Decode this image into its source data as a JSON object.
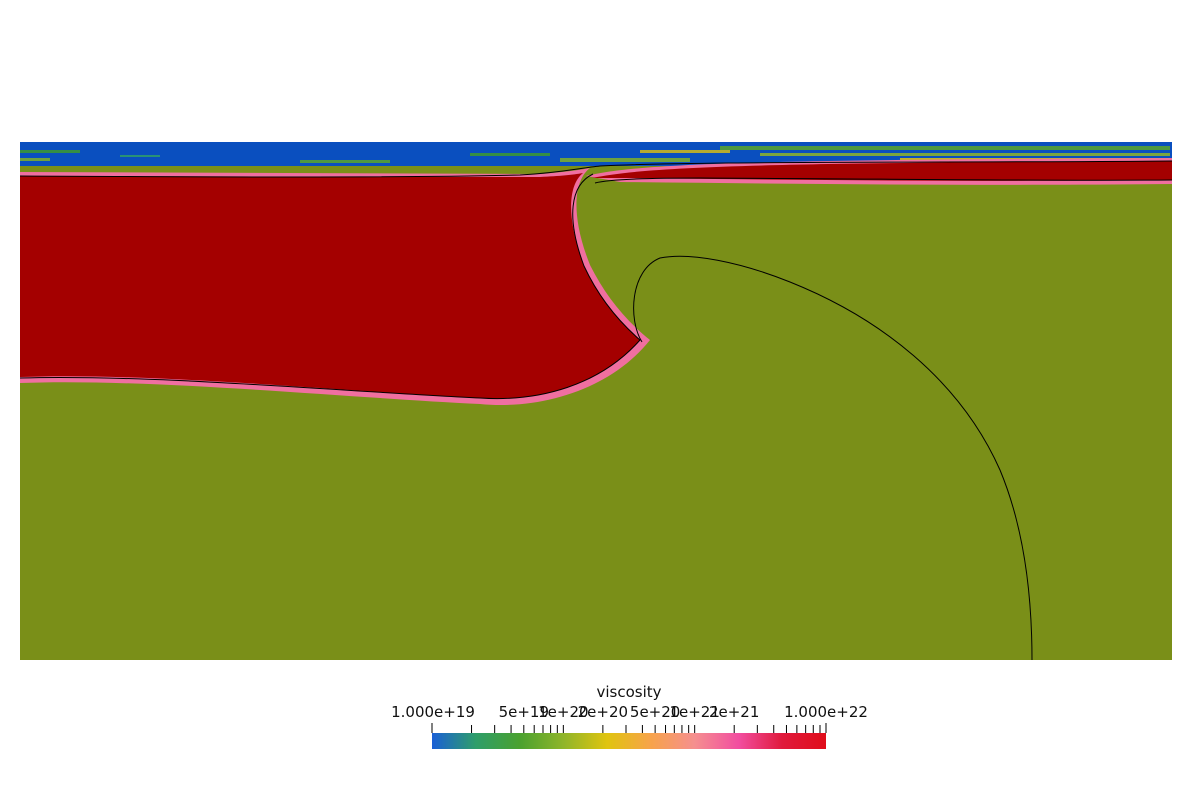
{
  "colorbar": {
    "title": "viscosity",
    "min_label": "1.000e+19",
    "max_label": "1.000e+22",
    "scale": "log",
    "ticks": [
      {
        "value": 5e+19,
        "label": "5e+19"
      },
      {
        "value": 1e+20,
        "label": "1e+20"
      },
      {
        "value": 2e+20,
        "label": "2e+20"
      },
      {
        "value": 5e+20,
        "label": "5e+20"
      },
      {
        "value": 1e+21,
        "label": "1e+21"
      },
      {
        "value": 2e+21,
        "label": "2e+21"
      }
    ],
    "colors": [
      "#1a5fd6",
      "#2e9e6a",
      "#4aa12f",
      "#8fb52a",
      "#e0c40f",
      "#f7a34a",
      "#f58f8f",
      "#f24ea0",
      "#e01a3c",
      "#e00d1a"
    ]
  },
  "field": {
    "colors": {
      "mantle": "#7a8f18",
      "slab": "#a40000",
      "air": "#0a4fbf",
      "halo": "#f06fa0",
      "contour": "#000000"
    }
  }
}
